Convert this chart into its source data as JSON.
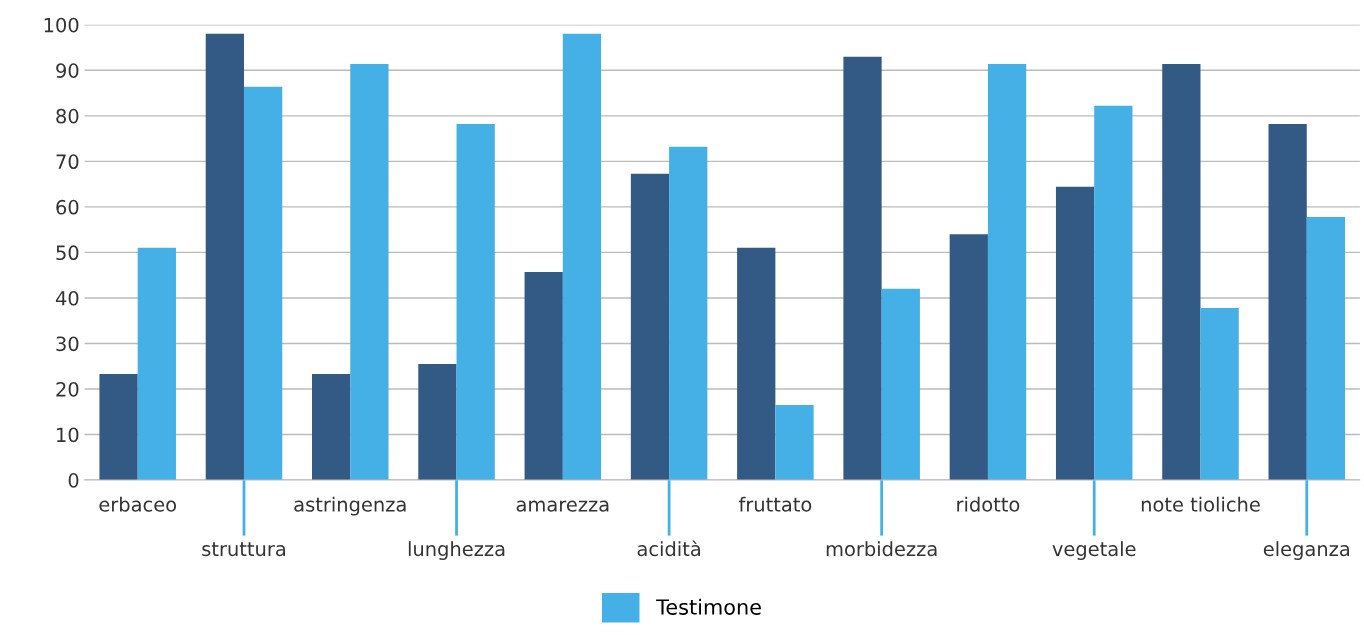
{
  "chart_data": {
    "type": "bar",
    "categories": [
      "erbaceo",
      "struttura",
      "astringenza",
      "lunghezza",
      "amarezza",
      "acidità",
      "fruttato",
      "morbidezza",
      "ridotto",
      "vegetale",
      "note tioliche",
      "eleganza"
    ],
    "series": [
      {
        "color": "#335a85",
        "values": [
          23.3,
          98,
          23.3,
          25.5,
          45.7,
          67.3,
          51,
          93,
          54,
          64.4,
          91.4,
          78.2
        ]
      },
      {
        "name": "Testimone",
        "color": "#45b0e6",
        "values": [
          51,
          86.4,
          91.4,
          78.2,
          98,
          73.2,
          16.5,
          42,
          91.4,
          82.2,
          37.8,
          57.8
        ]
      }
    ],
    "ylim": [
      0,
      100
    ],
    "yticks": [
      0,
      10,
      20,
      30,
      40,
      50,
      60,
      70,
      80,
      90,
      100
    ],
    "grid": "y",
    "legend": "bottom"
  }
}
